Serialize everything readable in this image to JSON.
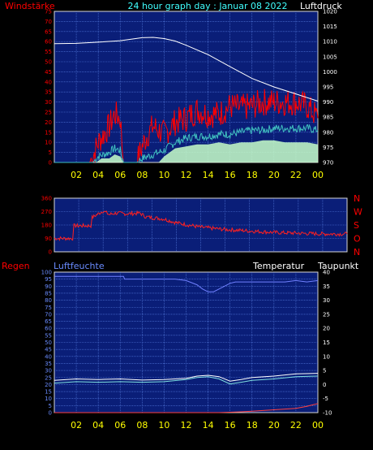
{
  "header": {
    "left_label": "Windstärke",
    "title": "24 hour graph day : Januar 08 2022",
    "right_label": "Luftdruck"
  },
  "lower_header": {
    "rain_label": "Regen",
    "humidity_label": "Luftfeuchte",
    "temp_label": "Temperatur",
    "dew_label": "Taupunkt"
  },
  "colors": {
    "plot_bg": "#0a1e78",
    "grid": "#5a82e6",
    "frame": "#d8d8d8",
    "wind": "#ff0000",
    "gust_band": "#c8ffc8",
    "wind_avg": "#40c0c0",
    "pressure": "#ffffff",
    "direction": "#ff2020",
    "humidity": "#7080ff",
    "temperature": "#ffffff",
    "dewpoint": "#80e0e0",
    "rain": "#ff4040",
    "red_text": "#ff0000",
    "cyan_text": "#40ffff",
    "blue_text": "#6a8cff",
    "white_text": "#ffffff",
    "x_tick_text": "#ffff00"
  },
  "chart_data": [
    {
      "id": "wind_pressure",
      "type": "line",
      "x_ticks": [
        "02",
        "04",
        "06",
        "08",
        "10",
        "12",
        "14",
        "16",
        "18",
        "20",
        "22",
        "00"
      ],
      "x_range_hours": [
        0,
        24
      ],
      "left_axis": {
        "ticks": [
          0,
          5,
          10,
          15,
          20,
          25,
          30,
          35,
          40,
          45,
          50,
          55,
          60,
          65,
          70,
          75
        ],
        "ylim": [
          0,
          75
        ]
      },
      "right_axis": {
        "ticks": [
          970,
          975,
          980,
          985,
          990,
          995,
          1000,
          1005,
          1010,
          1015,
          1020
        ],
        "ylim": [
          970,
          1020
        ]
      },
      "series": [
        {
          "key": "pressure",
          "axis": "right",
          "x": [
            0,
            2,
            4,
            6,
            8,
            9,
            10,
            11,
            12,
            14,
            16,
            18,
            20,
            22,
            24
          ],
          "values": [
            1009.3,
            1009.4,
            1009.8,
            1010.3,
            1011.3,
            1011.4,
            1011.0,
            1010.2,
            1008.8,
            1005.7,
            1001.7,
            997.8,
            995.0,
            992.7,
            990.3
          ]
        },
        {
          "key": "wind",
          "axis": "left",
          "x": [
            0,
            3.2,
            3.5,
            4,
            5,
            5.5,
            6,
            6.3,
            7.5,
            8,
            8.5,
            9,
            10,
            11,
            12,
            13,
            14,
            15,
            16,
            17,
            18,
            19,
            20,
            21,
            22,
            23,
            23.7,
            24
          ],
          "values": [
            0,
            0,
            3,
            10,
            18,
            24,
            22,
            0,
            0,
            8,
            14,
            18,
            14,
            20,
            22,
            26,
            24,
            24,
            28,
            27,
            28,
            30,
            30,
            30,
            30,
            28,
            24,
            22
          ]
        },
        {
          "key": "wind_avg",
          "axis": "left",
          "x": [
            0,
            3.5,
            4,
            5,
            5.5,
            6,
            6.3,
            7.5,
            8,
            9,
            10,
            11,
            12,
            13,
            14,
            15,
            16,
            17,
            18,
            19,
            20,
            21,
            22,
            23,
            24
          ],
          "values": [
            0,
            0,
            3,
            5,
            7,
            6,
            0,
            0,
            2,
            4,
            6,
            10,
            12,
            13,
            13,
            14,
            14,
            15,
            16,
            16,
            17,
            17,
            17,
            17,
            16
          ]
        },
        {
          "key": "gust_band",
          "axis": "left",
          "x": [
            0,
            3.8,
            4.3,
            5,
            5.5,
            6,
            6.3,
            9.5,
            10,
            11,
            12,
            13,
            14,
            15,
            16,
            17,
            18,
            19,
            20,
            21,
            22,
            23,
            24
          ],
          "values": [
            0,
            0,
            2,
            2,
            4,
            3,
            0,
            0,
            3,
            7,
            8,
            9,
            9,
            10,
            9,
            10,
            10,
            11,
            11,
            10,
            10,
            10,
            9
          ]
        }
      ]
    },
    {
      "id": "wind_direction",
      "type": "line",
      "x_range_hours": [
        0,
        24
      ],
      "left_axis": {
        "ticks": [
          0,
          90,
          180,
          270,
          360
        ],
        "ylim": [
          0,
          360
        ]
      },
      "right_labels": [
        "N",
        "W",
        "S",
        "O",
        "N"
      ],
      "series": [
        {
          "key": "direction",
          "x": [
            0,
            1.5,
            1.6,
            3,
            3.1,
            4,
            4.5,
            5,
            6,
            7,
            7.5,
            8,
            9,
            10,
            11,
            12,
            14,
            16,
            18,
            20,
            22,
            24
          ],
          "values": [
            90,
            90,
            175,
            175,
            230,
            275,
            250,
            260,
            255,
            260,
            235,
            230,
            220,
            195,
            180,
            165,
            150,
            140,
            130,
            125,
            120,
            120
          ]
        }
      ]
    },
    {
      "id": "temp_humidity_rain",
      "type": "line",
      "x_ticks": [
        "02",
        "04",
        "06",
        "08",
        "10",
        "12",
        "14",
        "16",
        "18",
        "20",
        "22",
        "00"
      ],
      "x_range_hours": [
        0,
        24
      ],
      "left_axis": {
        "ticks": [
          0,
          5,
          10,
          15,
          20,
          25,
          30,
          35,
          40,
          45,
          50,
          55,
          60,
          65,
          70,
          75,
          80,
          85,
          90,
          95,
          100
        ],
        "ylim": [
          0,
          100
        ]
      },
      "right_axis": {
        "ticks": [
          -10,
          -5,
          0,
          5,
          10,
          15,
          20,
          25,
          30,
          35,
          40
        ],
        "ylim": [
          -10,
          40
        ]
      },
      "series": [
        {
          "key": "humidity",
          "axis": "left",
          "x": [
            0,
            4,
            6.3,
            6.4,
            10,
            11,
            12,
            13,
            13.5,
            14,
            14.5,
            15,
            16,
            16.5,
            17,
            20,
            21,
            22,
            23,
            24
          ],
          "values": [
            97,
            97,
            97,
            95,
            95,
            95,
            94,
            91,
            88,
            86,
            86,
            88,
            92,
            93,
            93,
            93,
            93,
            94,
            93,
            94
          ]
        },
        {
          "key": "temperature",
          "axis": "right",
          "x": [
            0,
            2,
            4,
            6,
            8,
            10,
            12,
            13,
            14,
            15,
            16,
            17,
            18,
            20,
            22,
            24
          ],
          "values": [
            1.5,
            2.0,
            1.8,
            2.0,
            1.6,
            1.8,
            2.2,
            3.0,
            3.3,
            2.8,
            1.2,
            1.8,
            2.5,
            3.0,
            3.8,
            4.0
          ]
        },
        {
          "key": "dewpoint",
          "axis": "right",
          "x": [
            0,
            2,
            4,
            6,
            8,
            10,
            12,
            13,
            14,
            15,
            16,
            17,
            18,
            20,
            22,
            24
          ],
          "values": [
            0.5,
            1.0,
            0.8,
            1.0,
            0.8,
            1.0,
            1.8,
            2.5,
            2.8,
            2.0,
            0.2,
            0.8,
            1.5,
            2.0,
            2.8,
            3.0
          ]
        },
        {
          "key": "rain",
          "axis": "left",
          "x": [
            0,
            15,
            16,
            17,
            18,
            20,
            22,
            23,
            24
          ],
          "values": [
            0,
            0,
            0.3,
            0.6,
            1.0,
            2.0,
            3.0,
            4.5,
            6.5
          ]
        }
      ]
    }
  ]
}
